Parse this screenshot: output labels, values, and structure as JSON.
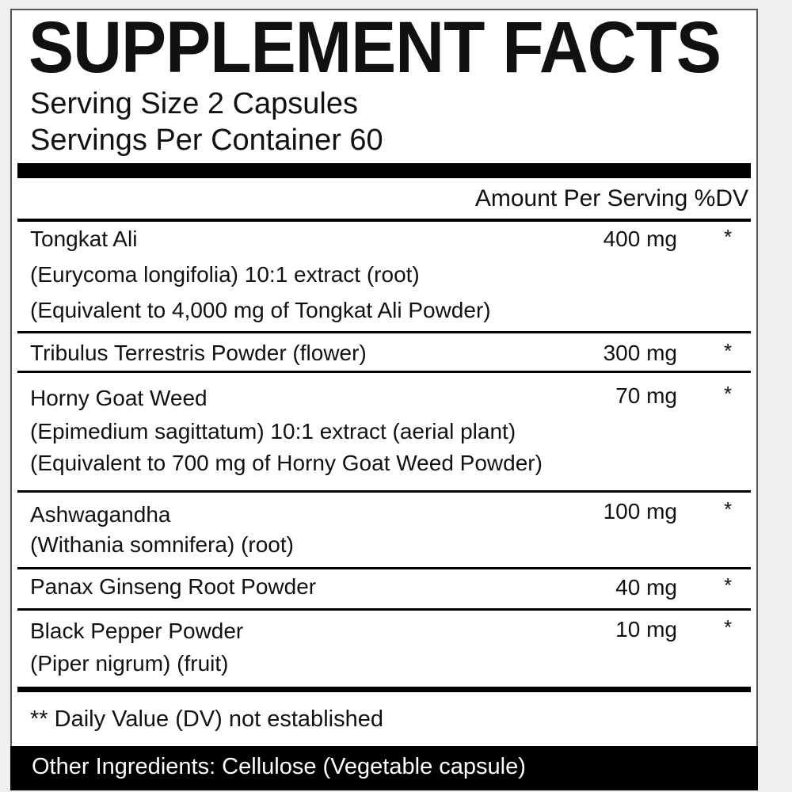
{
  "title": "SUPPLEMENT FACTS",
  "serving_size": "Serving Size 2 Capsules",
  "servings_per_container": "Servings Per Container 60",
  "header": "Amount Per Serving %DV",
  "ingredients": [
    {
      "lines": [
        "Tongkat Ali",
        "(Eurycoma longifolia) 10:1 extract (root)",
        "(Equivalent to 4,000 mg of Tongkat Ali Powder)"
      ],
      "amount": "400 mg",
      "dv": "*"
    },
    {
      "lines": [
        "Tribulus Terrestris Powder (flower)"
      ],
      "amount": "300 mg",
      "dv": "*"
    },
    {
      "lines": [
        "Horny Goat Weed",
        "(Epimedium sagittatum) 10:1 extract (aerial plant)",
        "(Equivalent to 700 mg of Horny Goat Weed Powder)"
      ],
      "amount": "70 mg",
      "dv": "*"
    },
    {
      "lines": [
        "Ashwagandha",
        "(Withania somnifera) (root)"
      ],
      "amount": "100 mg",
      "dv": "*"
    },
    {
      "lines": [
        "Panax Ginseng Root Powder"
      ],
      "amount": "40 mg",
      "dv": "*"
    },
    {
      "lines": [
        "Black Pepper Powder",
        "(Piper nigrum) (fruit)"
      ],
      "amount": "10 mg",
      "dv": "*"
    }
  ],
  "footnote": "** Daily Value (DV) not established",
  "other_ingredients": "Other Ingredients: Cellulose (Vegetable capsule)"
}
